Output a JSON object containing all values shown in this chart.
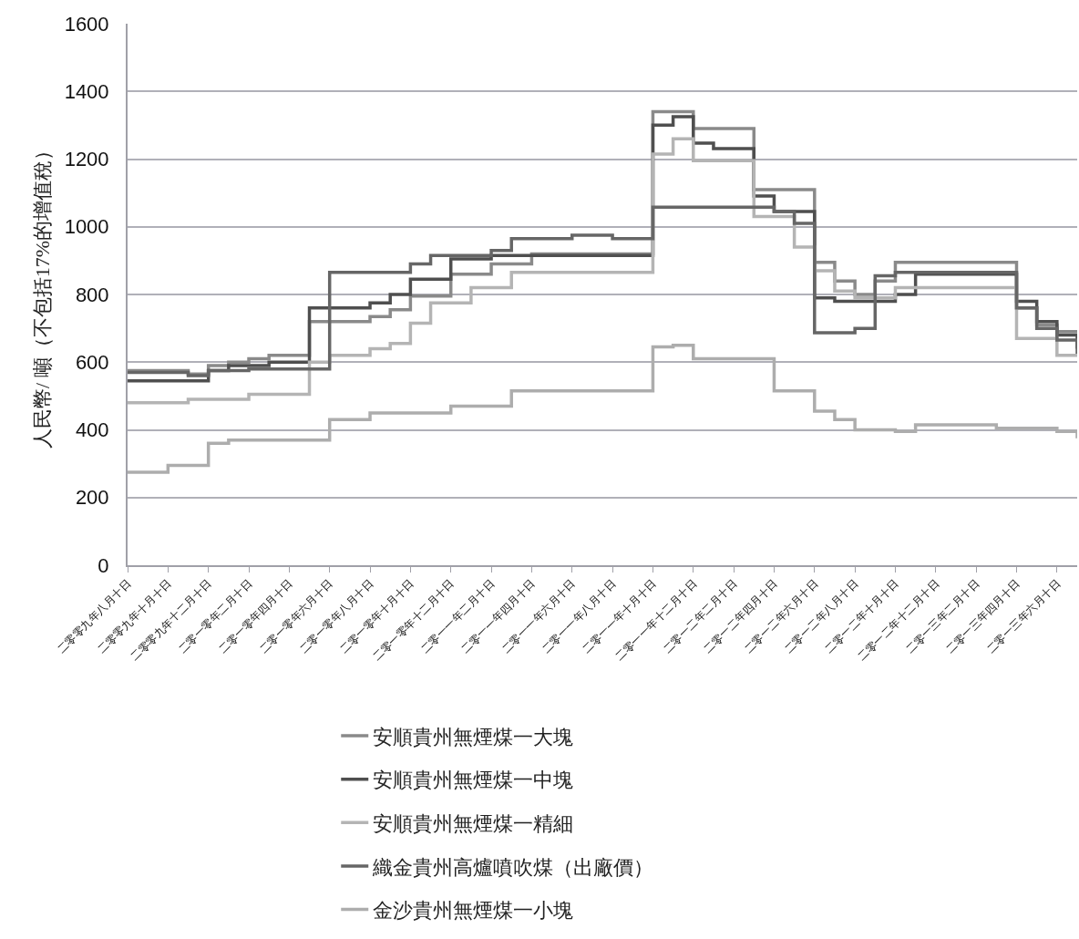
{
  "chart_data": {
    "type": "step",
    "ylabel": "人民幣/ 噸（不包括17%的增值稅）",
    "ylim": [
      0,
      1600
    ],
    "yticks": [
      0,
      200,
      400,
      600,
      800,
      1000,
      1200,
      1400,
      1600
    ],
    "categories": [
      "二零零九年八月十日",
      null,
      "二零零九年十月十日",
      null,
      "二零零九年十二月十日",
      null,
      "二零一零年二月十日",
      null,
      "二零一零年四月十日",
      null,
      "二零一零年六月十日",
      null,
      "二零一零年八月十日",
      null,
      "二零一零年十月十日",
      null,
      "二零一零年十二月十日",
      null,
      "二零一一年二月十日",
      null,
      "二零一一年四月十日",
      null,
      "二零一一年六月十日",
      null,
      "二零一一年八月十日",
      null,
      "二零一一年十月十日",
      null,
      "二零一一年十二月十日",
      null,
      "二零一二年二月十日",
      null,
      "二零一二年四月十日",
      null,
      "二零一二年六月十日",
      null,
      "二零一二年八月十日",
      null,
      "二零一二年十月十日",
      null,
      "二零一二年十二月十日",
      null,
      "二零一三年二月十日",
      null,
      "二零一三年四月十日",
      null,
      "二零一三年六月十日",
      null
    ],
    "grid": "y",
    "legend": "bottom",
    "line_style": "solid",
    "marker": "none",
    "series": [
      {
        "name": "安順貴州無煙煤一大塊",
        "color": "#8a8a8a",
        "values": [
          575,
          575,
          575,
          565,
          590,
          600,
          610,
          620,
          620,
          720,
          720,
          720,
          735,
          755,
          795,
          795,
          860,
          860,
          890,
          890,
          920,
          920,
          920,
          920,
          920,
          920,
          1340,
          1340,
          1290,
          1290,
          1290,
          1110,
          1110,
          1110,
          895,
          840,
          800,
          840,
          895,
          895,
          895,
          895,
          895,
          895,
          760,
          710,
          690,
          690
        ]
      },
      {
        "name": "安順貴州無煙煤一中塊",
        "color": "#4f4f4f",
        "values": [
          545,
          545,
          545,
          545,
          575,
          590,
          590,
          600,
          600,
          760,
          760,
          760,
          775,
          800,
          845,
          845,
          905,
          905,
          915,
          915,
          915,
          915,
          915,
          915,
          915,
          915,
          1300,
          1325,
          1247,
          1231,
          1231,
          1091,
          1045,
          1045,
          790,
          780,
          780,
          780,
          800,
          860,
          860,
          860,
          860,
          860,
          780,
          720,
          680,
          640
        ]
      },
      {
        "name": "安順貴州無煙煤一精細",
        "color": "#b4b4b4",
        "values": [
          480,
          480,
          480,
          490,
          490,
          490,
          505,
          505,
          505,
          600,
          620,
          620,
          640,
          655,
          715,
          775,
          775,
          820,
          820,
          865,
          865,
          865,
          865,
          865,
          865,
          865,
          1215,
          1260,
          1195,
          1195,
          1195,
          1030,
          1030,
          940,
          870,
          810,
          790,
          790,
          820,
          820,
          820,
          820,
          820,
          820,
          670,
          670,
          620,
          620
        ]
      },
      {
        "name": "織金貴州高爐噴吹煤（出廠價）",
        "color": "#666666",
        "values": [
          570,
          570,
          570,
          560,
          575,
          575,
          580,
          580,
          580,
          580,
          865,
          865,
          865,
          865,
          890,
          915,
          915,
          915,
          930,
          965,
          965,
          965,
          975,
          975,
          965,
          965,
          1058,
          1058,
          1058,
          1058,
          1058,
          1058,
          1045,
          1010,
          687,
          687,
          700,
          855,
          865,
          865,
          865,
          865,
          865,
          865,
          760,
          700,
          665,
          625
        ]
      },
      {
        "name": "金沙貴州無煙煤一小塊",
        "color": "#adadad",
        "values": [
          275,
          275,
          295,
          295,
          360,
          370,
          370,
          370,
          370,
          370,
          430,
          430,
          450,
          450,
          450,
          450,
          470,
          470,
          470,
          515,
          515,
          515,
          515,
          515,
          515,
          515,
          645,
          650,
          610,
          610,
          610,
          610,
          515,
          515,
          455,
          430,
          400,
          400,
          395,
          415,
          415,
          415,
          415,
          405,
          405,
          405,
          395,
          375
        ]
      }
    ]
  }
}
